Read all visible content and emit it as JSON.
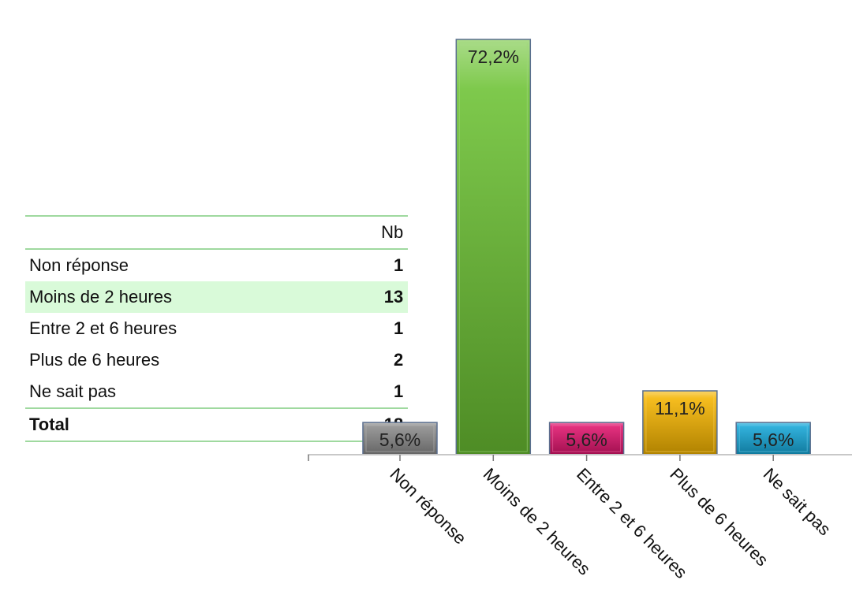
{
  "table": {
    "header": "Nb",
    "rows": [
      {
        "label": "Non réponse",
        "value": "1"
      },
      {
        "label": "Moins de 2 heures",
        "value": "13"
      },
      {
        "label": "Entre 2 et 6 heures",
        "value": "1"
      },
      {
        "label": "Plus de 6 heures",
        "value": "2"
      },
      {
        "label": "Ne sait pas",
        "value": "1"
      }
    ],
    "total_label": "Total",
    "total_value": "18"
  },
  "chart_data": {
    "type": "bar",
    "categories": [
      "Non réponse",
      "Moins de 2 heures",
      "Entre 2 et 6 heures",
      "Plus de 6 heures",
      "Ne sait pas"
    ],
    "values": [
      5.6,
      72.2,
      5.6,
      11.1,
      5.6
    ],
    "data_labels": [
      "5,6%",
      "72,2%",
      "5,6%",
      "11,1%",
      "5,6%"
    ],
    "colors": [
      "#8c8c8c",
      "#6cc234",
      "#e0156e",
      "#f5b400",
      "#16a8d8"
    ],
    "title": "",
    "xlabel": "",
    "ylabel": "",
    "ylim": [
      0,
      72.2
    ],
    "grid": false,
    "legend": "none"
  }
}
